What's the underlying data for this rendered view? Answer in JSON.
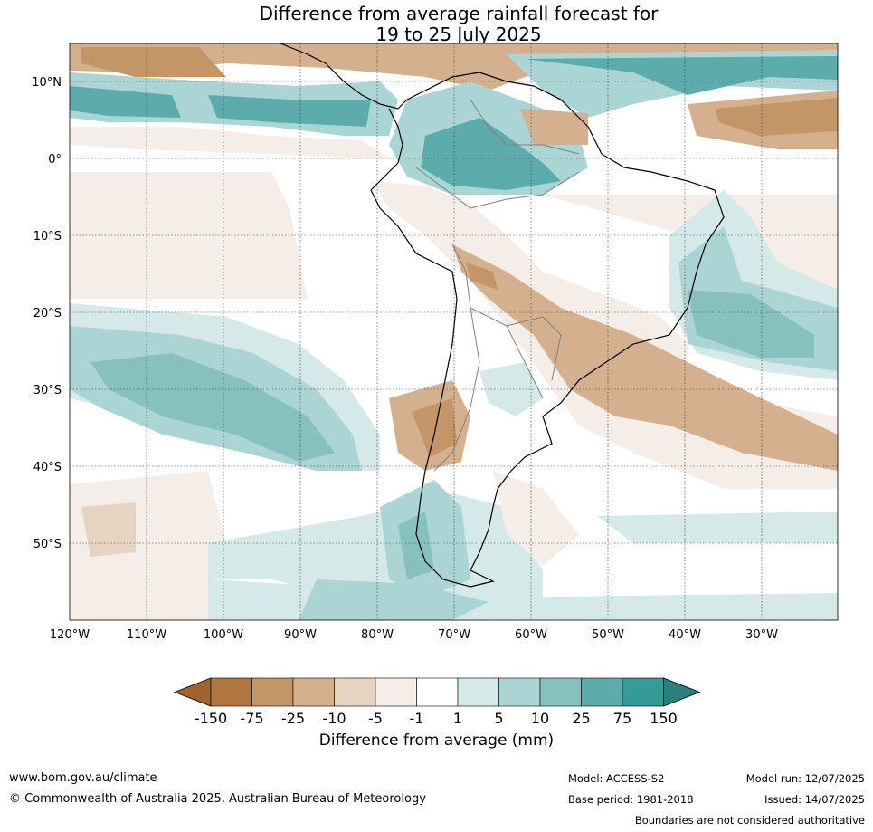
{
  "title_line1": "Difference from average rainfall forecast for",
  "title_line2": "19 to 25 July 2025",
  "axes": {
    "lon_labels": [
      "120°W",
      "110°W",
      "100°W",
      "90°W",
      "80°W",
      "70°W",
      "60°W",
      "50°W",
      "40°W",
      "30°W"
    ],
    "lat_labels": [
      "10°N",
      "0°",
      "10°S",
      "20°S",
      "30°S",
      "40°S",
      "50°S"
    ]
  },
  "colorbar": {
    "title": "Difference from average (mm)",
    "tick_labels": [
      "-150",
      "-75",
      "-25",
      "-10",
      "-5",
      "-1",
      "1",
      "5",
      "10",
      "25",
      "75",
      "150"
    ],
    "colors": [
      "#a0652e",
      "#b07840",
      "#c49567",
      "#d5b08f",
      "#e6d3c1",
      "#f5ede8",
      "#ffffff",
      "#d4e9e8",
      "#abd5d4",
      "#86c1bf",
      "#5bacab",
      "#359b99",
      "#2a7f7d"
    ]
  },
  "footer": {
    "url": "www.bom.gov.au/climate",
    "copyright": "© Commonwealth of Australia 2025, Australian Bureau of Meteorology",
    "model": "Model: ACCESS-S2",
    "base_period": "Base period: 1981-2018",
    "model_run": "Model run: 12/07/2025",
    "issued": "Issued: 14/07/2025",
    "disclaimer": "Boundaries are not considered authoritative"
  }
}
